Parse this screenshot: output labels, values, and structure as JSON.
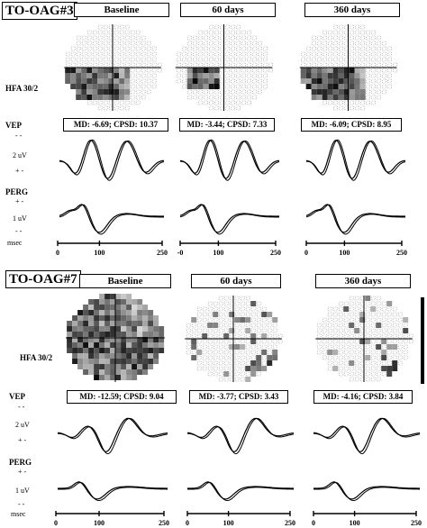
{
  "hfa_label": "HFA 30/2",
  "vep_label": "VEP",
  "perg_label": "PERG",
  "plus_minus": "+ -",
  "minus_minus": "- -",
  "vep_scale": "2 uV",
  "perg_scale": "1 uV",
  "time_unit": "msec",
  "time_ticks": [
    "0",
    "100",
    "250"
  ],
  "time_ticks_60d_case3": [
    "-0",
    "100",
    "250"
  ],
  "patients": [
    {
      "id": "TO-OAG#3",
      "visits": [
        {
          "label": "Baseline",
          "md_text": "MD: -6.69;  CPSD: 10.37",
          "field_defect": "inferior-left nasal step"
        },
        {
          "label": "60 days",
          "md_text": "MD: -3.44;  CPSD: 7.33",
          "field_defect": "inferior-left localized"
        },
        {
          "label": "360 days",
          "md_text": "MD: -6.09;  CPSD: 8.95",
          "field_defect": "inferior-left nasal step"
        }
      ]
    },
    {
      "id": "TO-OAG#7",
      "visits": [
        {
          "label": "Baseline",
          "md_text": "MD: -12.59;  CPSD: 9.04",
          "field_defect": "diffuse dense"
        },
        {
          "label": "60 days",
          "md_text": "MD: -3.77;  CPSD: 3.43",
          "field_defect": "scattered mild"
        },
        {
          "label": "360 days",
          "md_text": "MD: -4.16;  CPSD: 3.84",
          "field_defect": "scattered mild"
        }
      ]
    }
  ]
}
